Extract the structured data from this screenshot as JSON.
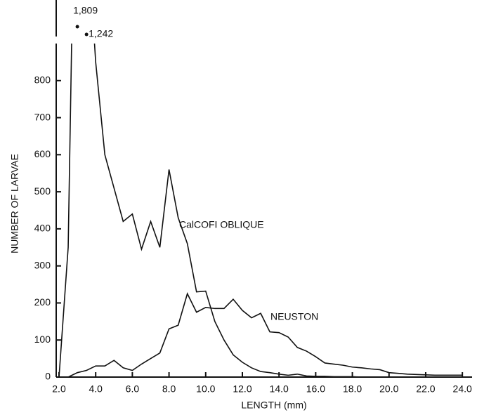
{
  "chart_data": {
    "type": "line",
    "x_label": "LENGTH     (mm)",
    "y_label": "NUMBER OF LARVAE",
    "x": [
      2.0,
      2.5,
      3.0,
      3.5,
      4.0,
      4.5,
      5.0,
      5.5,
      6.0,
      6.5,
      7.0,
      7.5,
      8.0,
      8.5,
      9.0,
      9.5,
      10.0,
      10.5,
      11.0,
      11.5,
      12.0,
      12.5,
      13.0,
      13.5,
      14.0,
      14.5,
      15.0,
      15.5,
      16.0,
      16.5,
      17.0,
      17.5,
      18.0,
      18.5,
      19.0,
      19.5,
      20.0,
      20.5,
      21.0,
      21.5,
      22.0,
      22.5,
      23.0,
      23.5,
      24.0
    ],
    "series": [
      {
        "name": "CalCOFI OBLIQUE",
        "color": "#111111",
        "values": [
          0,
          350,
          1809,
          1242,
          850,
          600,
          510,
          420,
          440,
          345,
          420,
          350,
          560,
          430,
          360,
          230,
          232,
          150,
          100,
          60,
          40,
          25,
          15,
          12,
          8,
          5,
          8,
          3,
          2,
          2,
          1,
          1,
          1,
          0,
          0,
          0,
          0,
          0,
          0,
          0,
          0,
          0,
          0,
          0,
          0
        ],
        "value_labels": [
          null,
          null,
          "1,809",
          "1,242",
          null,
          null,
          null,
          null,
          null,
          null,
          null,
          null,
          null,
          null,
          null,
          null,
          null,
          null,
          null,
          null,
          null,
          null,
          null,
          null,
          null,
          null,
          null,
          null,
          null,
          null,
          null,
          null,
          null,
          null,
          null,
          null,
          null,
          null,
          null,
          null,
          null,
          null,
          null,
          null,
          null
        ]
      },
      {
        "name": "NEUSTON",
        "color": "#111111",
        "values": [
          null,
          0,
          12,
          18,
          30,
          30,
          45,
          25,
          18,
          35,
          50,
          65,
          130,
          140,
          225,
          175,
          188,
          185,
          185,
          210,
          180,
          160,
          172,
          122,
          120,
          108,
          80,
          70,
          55,
          38,
          35,
          32,
          27,
          25,
          22,
          20,
          12,
          10,
          8,
          7,
          6,
          5,
          5,
          5,
          5
        ]
      }
    ],
    "xlim": [
      2.0,
      24.3
    ],
    "ylim": [
      0,
      900
    ],
    "xticks": [
      {
        "value": 2,
        "label": "2.0"
      },
      {
        "value": 4,
        "label": "4.0"
      },
      {
        "value": 6,
        "label": "6.0"
      },
      {
        "value": 8,
        "label": "8.0"
      },
      {
        "value": 10,
        "label": "10.0"
      },
      {
        "value": 12,
        "label": "12.0"
      },
      {
        "value": 14,
        "label": "14.0"
      },
      {
        "value": 16,
        "label": "16.0"
      },
      {
        "value": 18,
        "label": "18.0"
      },
      {
        "value": 20,
        "label": "20.0"
      },
      {
        "value": 22,
        "label": "22.0"
      },
      {
        "value": 24,
        "label": "24.0"
      }
    ],
    "yticks": [
      0,
      100,
      200,
      300,
      400,
      500,
      600,
      700,
      800
    ],
    "grid": false
  }
}
